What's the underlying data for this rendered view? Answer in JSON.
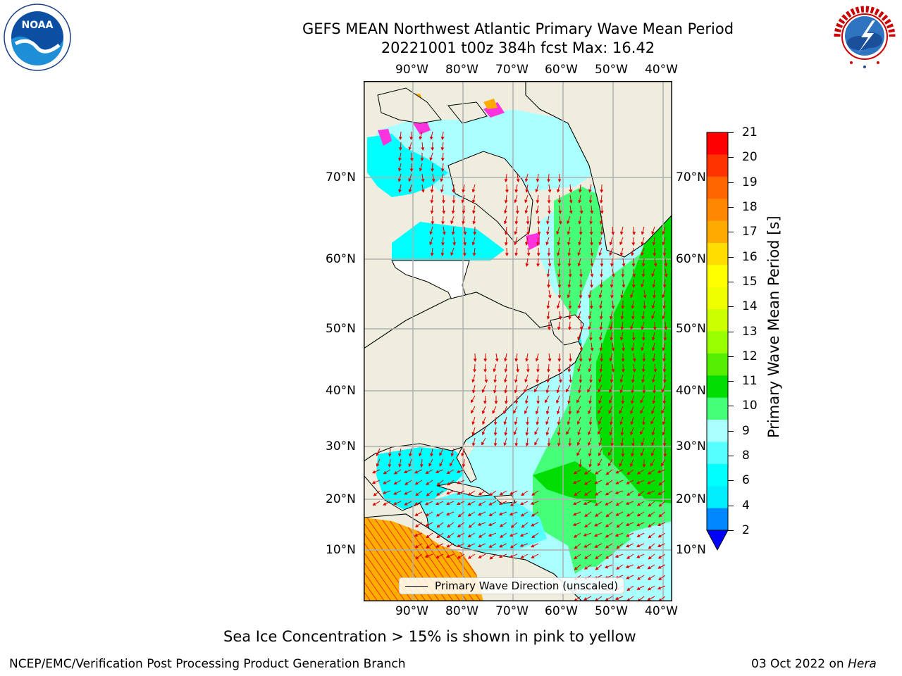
{
  "title": {
    "line1": "GEFS MEAN Northwest Atlantic Primary Wave Mean Period",
    "line2": "20221001 t00z 384h fcst   Max: 16.42"
  },
  "logos": {
    "left": {
      "icon": "noaa-logo-icon",
      "text": "NOAA"
    },
    "right": {
      "icon": "nws-logo-icon",
      "text": "NATIONAL WEATHER SERVICE"
    }
  },
  "map": {
    "lon_labels": [
      "90°W",
      "80°W",
      "70°W",
      "60°W",
      "50°W",
      "40°W"
    ],
    "lat_labels": [
      "70°N",
      "60°N",
      "50°N",
      "40°N",
      "30°N",
      "20°N",
      "10°N"
    ],
    "legend": "Primary Wave Direction (unscaled)"
  },
  "colorbar": {
    "label": "Primary Wave Mean Period [s]",
    "ticks": [
      "21",
      "20",
      "19",
      "18",
      "17",
      "16",
      "15",
      "14",
      "13",
      "12",
      "11",
      "10",
      "9",
      "8",
      "6",
      "4",
      "2"
    ],
    "colors": [
      "#ff0000",
      "#ff3300",
      "#ff6600",
      "#ff8800",
      "#ffaa00",
      "#ffdd00",
      "#ffff00",
      "#eeff00",
      "#ccff00",
      "#99ff00",
      "#55ee00",
      "#00dd00",
      "#44ff77",
      "#aaffff",
      "#55ffff",
      "#00ffff",
      "#00eeff",
      "#0088ff",
      "#0000ff"
    ]
  },
  "caption": "Sea Ice Concentration > 15% is shown in pink to yellow",
  "footer": {
    "left": "NCEP/EMC/Verification Post Processing Product Generation Branch",
    "date": "03 Oct 2022 on ",
    "machine": "Hera"
  }
}
